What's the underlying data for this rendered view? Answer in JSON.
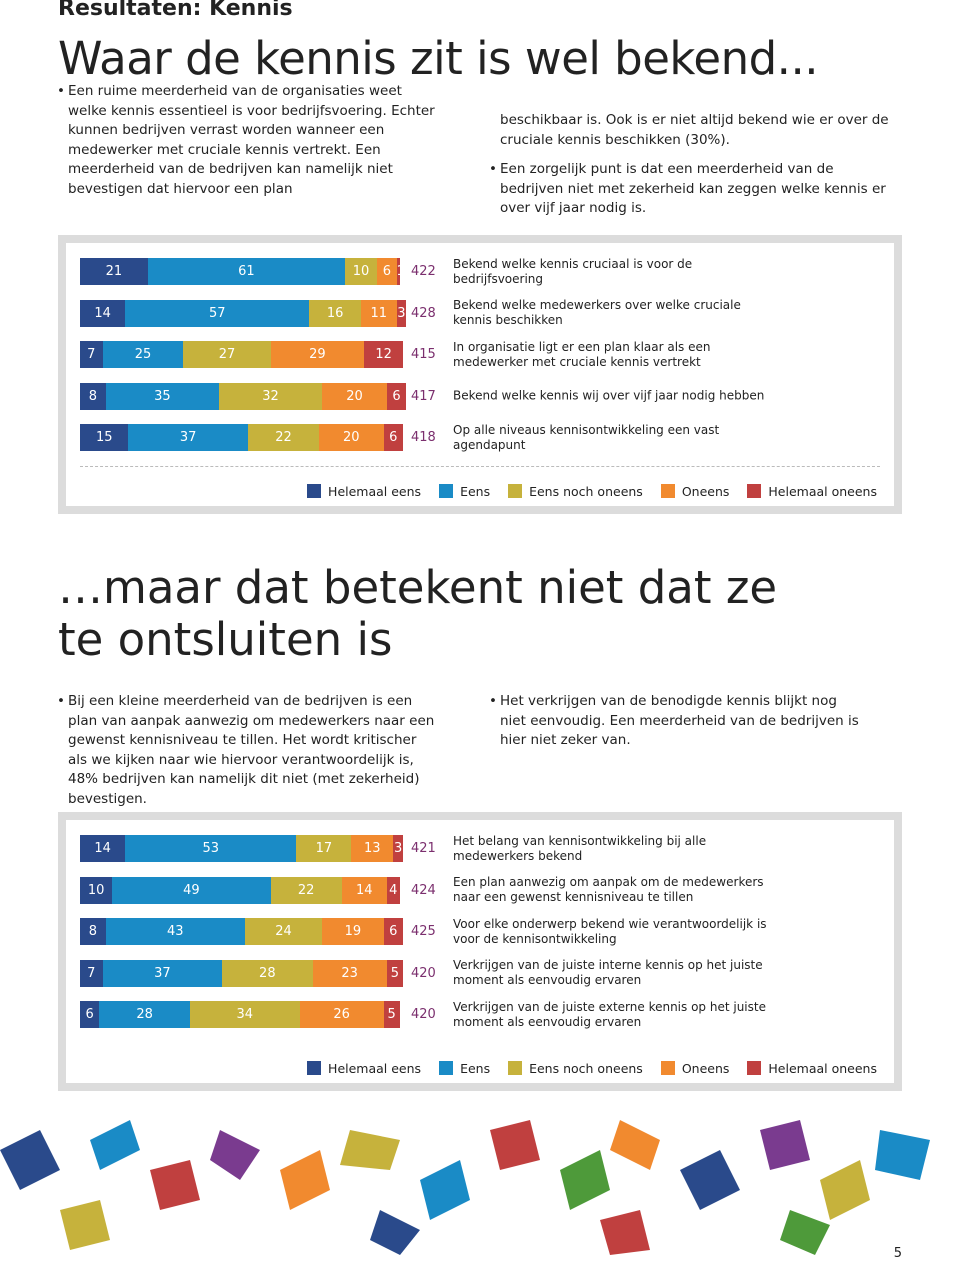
{
  "header": {
    "kicker": "Resultaten: Kennis",
    "title": "Waar de kennis zit is wel bekend..."
  },
  "section1": {
    "col1": [
      "Een ruime meerderheid van de organisaties weet welke kennis essentieel is voor bedrijfsvoering. Echter kunnen bedrijven verrast worden wanneer een medewerker met cruciale kennis vertrekt. Een meerderheid van de bedrijven kan namelijk niet bevestigen dat hiervoor een plan"
    ],
    "col2": [
      "beschikbaar is. Ook is er niet altijd bekend wie er over de cruciale kennis beschikken (30%).",
      "Een zorgelijk punt is dat een meerderheid van de bedrijven niet met zekerheid kan zeggen welke kennis er over vijf jaar nodig is."
    ]
  },
  "section2": {
    "title": "…maar dat betekent niet dat ze te ontsluiten is",
    "col1": [
      "Bij een kleine meerderheid van de bedrijven is een plan van aanpak aanwezig om medewerkers naar een gewenst kennisniveau te tillen. Het wordt kritischer als we kijken naar wie hiervoor verantwoordelijk is, 48% bedrijven kan namelijk dit niet (met zekerheid) bevestigen."
    ],
    "col2": [
      "Het verkrijgen van de benodigde kennis blijkt nog niet eenvoudig. Een meerderheid van de bedrijven is hier niet zeker van."
    ]
  },
  "page_number": "5",
  "chart_data": [
    {
      "type": "stacked_hbar",
      "xlim": [
        0,
        100
      ],
      "categories": [
        "Bekend welke kennis cruciaal is voor de bedrijfsvoering",
        "Bekend welke medewerkers over welke cruciale kennis beschikken",
        "In organisatie ligt er een plan klaar als een medewerker met cruciale kennis vertrekt",
        "Bekend welke kennis wij over vijf jaar nodig hebben",
        "Op alle niveaus kennisontwikkeling een vast agendapunt"
      ],
      "n": [
        422,
        428,
        415,
        417,
        418
      ],
      "series": [
        {
          "name": "Helemaal eens",
          "color": "#2a4a8b",
          "values": [
            21,
            14,
            7,
            8,
            15
          ]
        },
        {
          "name": "Eens",
          "color": "#1a8bc6",
          "values": [
            61,
            57,
            25,
            35,
            37
          ]
        },
        {
          "name": "Eens noch oneens",
          "color": "#c6b23c",
          "values": [
            10,
            16,
            27,
            32,
            22
          ]
        },
        {
          "name": "Oneens",
          "color": "#f18a2f",
          "values": [
            6,
            11,
            29,
            20,
            20
          ]
        },
        {
          "name": "Helemaal oneens",
          "color": "#c0403f",
          "values": [
            1,
            3,
            12,
            6,
            6
          ]
        }
      ]
    },
    {
      "type": "stacked_hbar",
      "xlim": [
        0,
        100
      ],
      "categories": [
        "Het belang van kennisontwikkeling bij alle medewerkers bekend",
        "Een plan aanwezig om aanpak om de medewerkers naar een gewenst kennisniveau te tillen",
        "Voor elke onderwerp bekend wie verantwoordelijk is voor de kennisontwikkeling",
        "Verkrijgen van de juiste interne kennis op het juiste moment als eenvoudig ervaren",
        "Verkrijgen van de juiste externe kennis op het juiste moment als eenvoudig ervaren"
      ],
      "n": [
        421,
        424,
        425,
        420,
        420
      ],
      "series": [
        {
          "name": "Helemaal eens",
          "color": "#2a4a8b",
          "values": [
            14,
            10,
            8,
            7,
            6
          ]
        },
        {
          "name": "Eens",
          "color": "#1a8bc6",
          "values": [
            53,
            49,
            43,
            37,
            28
          ]
        },
        {
          "name": "Eens noch oneens",
          "color": "#c6b23c",
          "values": [
            17,
            22,
            24,
            28,
            34
          ]
        },
        {
          "name": "Oneens",
          "color": "#f18a2f",
          "values": [
            13,
            14,
            19,
            23,
            26
          ]
        },
        {
          "name": "Helemaal oneens",
          "color": "#c0403f",
          "values": [
            3,
            4,
            6,
            5,
            5
          ]
        }
      ]
    }
  ]
}
